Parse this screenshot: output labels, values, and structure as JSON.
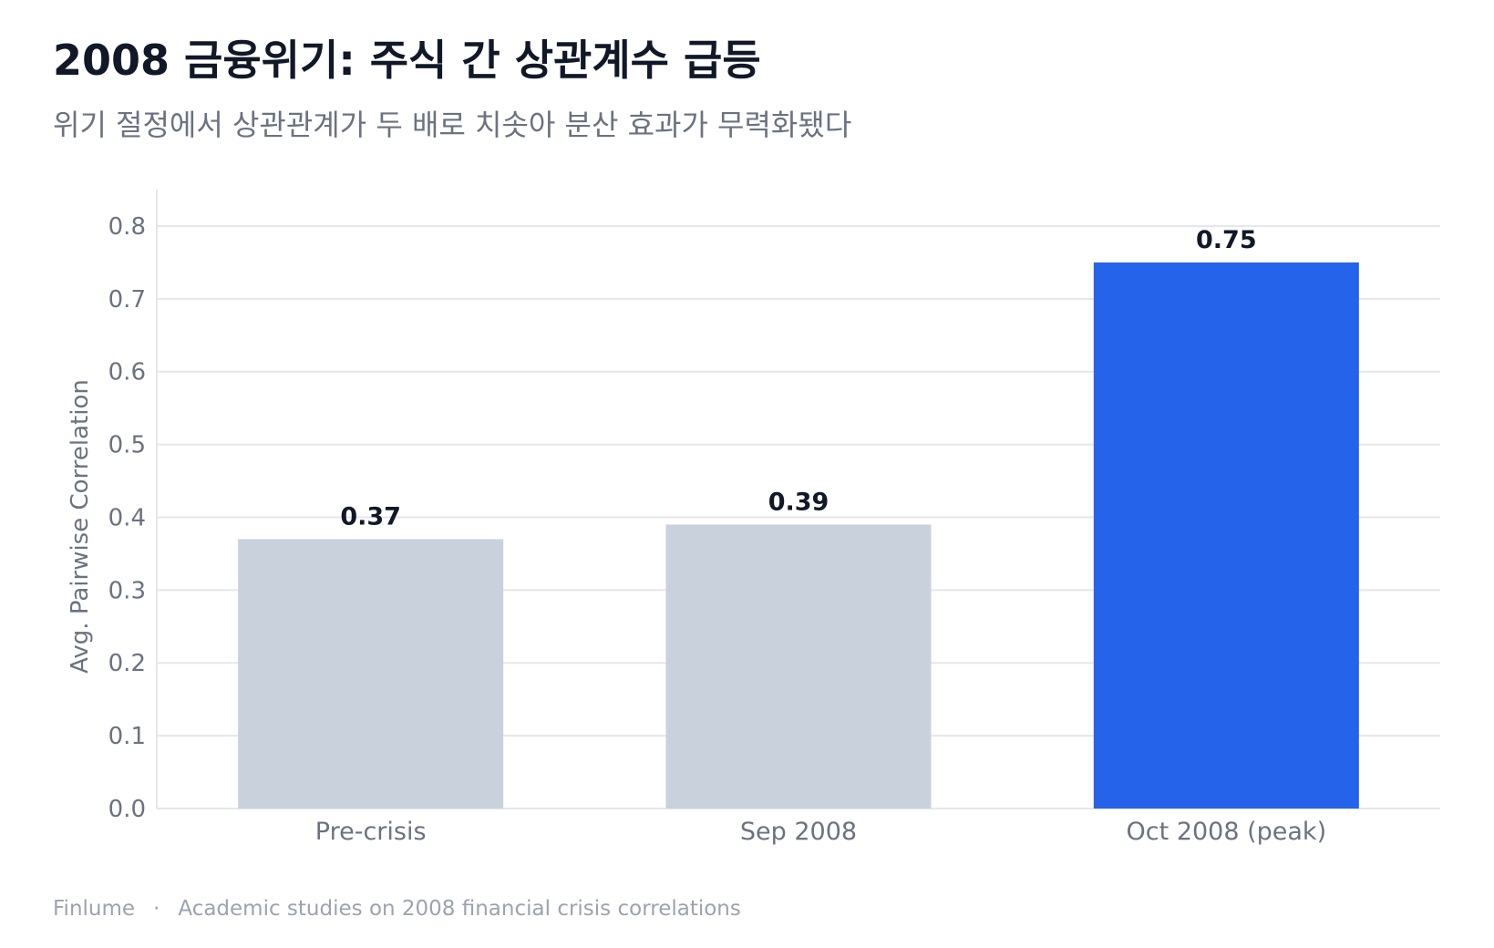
{
  "chart_data": {
    "type": "bar",
    "title": "2008 금융위기: 주식 간 상관계수 급등",
    "subtitle": "위기 절정에서 상관관계가 두 배로 치솟아 분산 효과가 무력화됐다",
    "categories": [
      "Pre-crisis",
      "Sep 2008",
      "Oct 2008 (peak)"
    ],
    "values": [
      0.37,
      0.39,
      0.75
    ],
    "data_labels": [
      "0.37",
      "0.39",
      "0.75"
    ],
    "ylabel": "Avg. Pairwise Correlation",
    "xlabel": "",
    "ylim": [
      0,
      0.85
    ],
    "yticks": [
      0.0,
      0.1,
      0.2,
      0.3,
      0.4,
      0.5,
      0.6,
      0.7,
      0.8
    ],
    "ytick_labels": [
      "0.0",
      "0.1",
      "0.2",
      "0.3",
      "0.4",
      "0.5",
      "0.6",
      "0.7",
      "0.8"
    ],
    "grid": true,
    "bar_colors": [
      "#c8d1dc",
      "#c8d1dc",
      "#2563eb"
    ]
  },
  "footer": {
    "brand": "Finlume",
    "separator": "·",
    "source": "Academic studies on 2008 financial crisis correlations"
  },
  "colors": {
    "title": "#111827",
    "subtitle": "#6b7280",
    "axis_text": "#6b7280",
    "grid": "#e5e7eb",
    "data_label": "#111827",
    "muted_bar": "#c8d1dc",
    "accent_bar": "#2563eb"
  }
}
